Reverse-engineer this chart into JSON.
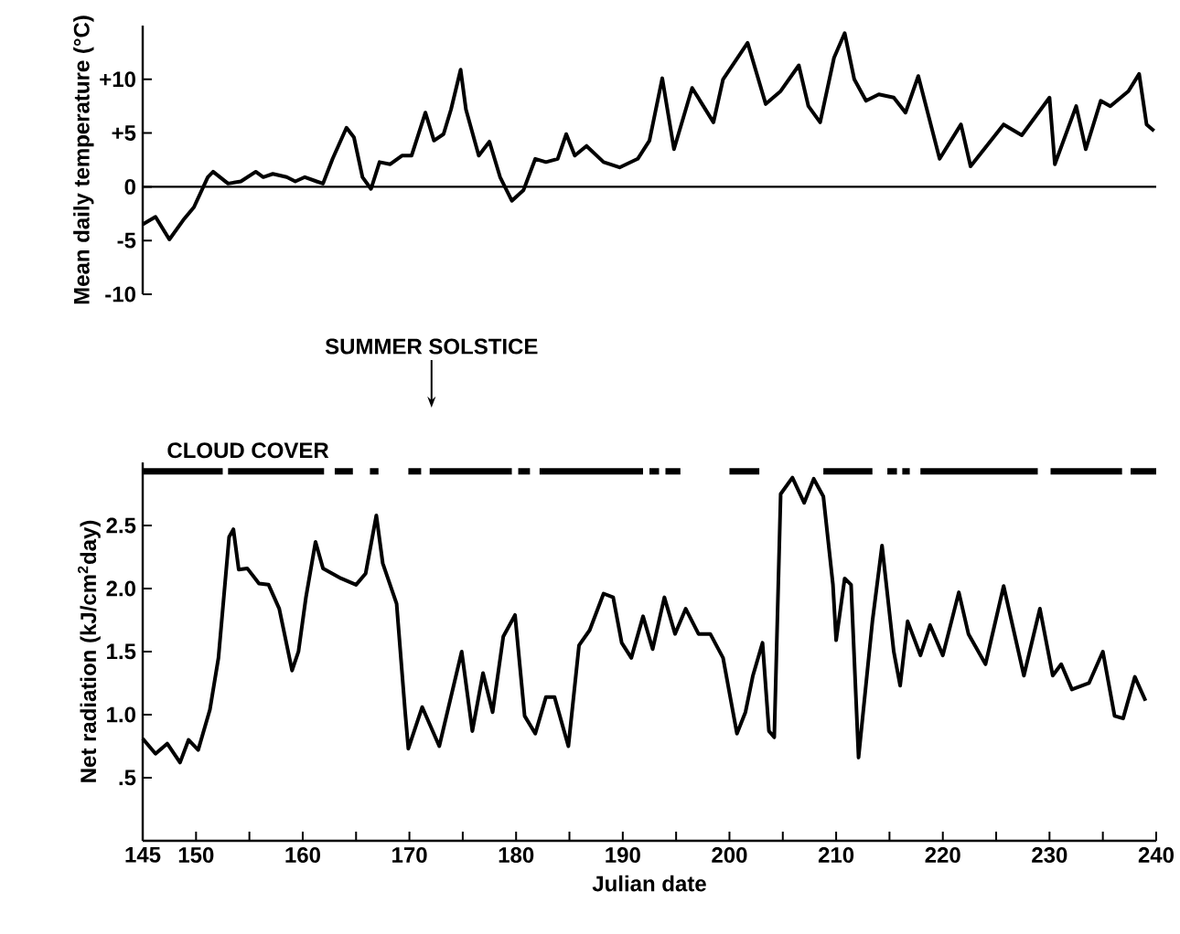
{
  "chart_data": [
    {
      "type": "line",
      "ylabel": "Mean daily temperature (°C)",
      "xlim": [
        145,
        240
      ],
      "ylim": [
        -10,
        15
      ],
      "yticks": [
        {
          "value": 10,
          "label": "+10"
        },
        {
          "value": 5,
          "label": "+5"
        },
        0,
        -5,
        -10
      ],
      "tick_labels": "y",
      "ref_lines": [
        {
          "axis": "y",
          "value": 0,
          "color": "#000000"
        }
      ],
      "series": [
        {
          "color": "#000000",
          "x": [
            145,
            146.2,
            147.5,
            148.8,
            149.8,
            151.1,
            151.6,
            153,
            154.2,
            155.6,
            156.3,
            157.2,
            158.5,
            159.3,
            160.2,
            161.3,
            161.9,
            162.8,
            164.1,
            164.8,
            165.6,
            166.4,
            167.2,
            168.2,
            169.3,
            170.2,
            171.5,
            172.3,
            173.2,
            173.9,
            174.8,
            175.3,
            176.5,
            177.5,
            178.5,
            179.6,
            180.7,
            181.8,
            182.8,
            183.9,
            184.7,
            185.5,
            186.6,
            188.2,
            189.7,
            191.4,
            192.5,
            193.7,
            194.8,
            196.5,
            198.5,
            199.4,
            201.7,
            203.4,
            204.8,
            206.5,
            207.4,
            208.5,
            209.8,
            210.8,
            211.7,
            212.8,
            214,
            215.4,
            216.5,
            217.7,
            219.7,
            221.7,
            222.6,
            225.7,
            227.4,
            230,
            230.5,
            232.5,
            233.4,
            234.8,
            235.7,
            237.4,
            238.4,
            239.1,
            239.8
          ],
          "values": [
            -3.5,
            -2.8,
            -4.9,
            -3.1,
            -1.9,
            0.9,
            1.4,
            0.3,
            0.5,
            1.4,
            0.9,
            1.2,
            0.9,
            0.5,
            0.9,
            0.5,
            0.3,
            2.6,
            5.5,
            4.6,
            0.9,
            -0.2,
            2.3,
            2.1,
            2.9,
            2.9,
            6.9,
            4.3,
            4.9,
            7.2,
            10.9,
            7.2,
            2.9,
            4.2,
            0.9,
            -1.3,
            -0.3,
            2.6,
            2.3,
            2.6,
            4.9,
            2.9,
            3.8,
            2.3,
            1.8,
            2.6,
            4.3,
            10.1,
            3.5,
            9.2,
            6.0,
            10.0,
            13.4,
            7.7,
            8.9,
            11.3,
            7.5,
            6.0,
            12.0,
            14.3,
            10.0,
            8.0,
            8.6,
            8.3,
            6.9,
            10.3,
            2.6,
            5.8,
            1.9,
            5.8,
            4.8,
            8.3,
            2.1,
            7.5,
            3.5,
            8.0,
            7.5,
            8.9,
            10.5,
            5.8,
            5.2
          ]
        }
      ]
    },
    {
      "type": "line",
      "xlabel": "Julian date",
      "ylabel": "Net radiation (kJ/cm$^{2}$day)",
      "xlim": [
        145,
        240
      ],
      "ylim": [
        0,
        3
      ],
      "xticks": [
        145,
        150,
        {
          "value": 155,
          "label": null
        },
        160,
        {
          "value": 165,
          "label": null
        },
        170,
        {
          "value": 175,
          "label": null
        },
        180,
        {
          "value": 185,
          "label": null
        },
        190,
        {
          "value": 195,
          "label": null
        },
        200,
        {
          "value": 205,
          "label": null
        },
        210,
        {
          "value": 215,
          "label": null
        },
        220,
        {
          "value": 225,
          "label": null
        },
        230,
        {
          "value": 235,
          "label": null
        },
        240
      ],
      "yticks": [
        {
          "value": 0.5,
          "label": ".5"
        },
        {
          "value": 1,
          "label": "1.0"
        },
        {
          "value": 1.5,
          "label": "1.5"
        },
        {
          "value": 2,
          "label": "2.0"
        },
        {
          "value": 2.5,
          "label": "2.5"
        }
      ],
      "annotations": [
        "SUMMER SOLSTICE"
      ],
      "series": [
        {
          "name": "CLOUD COVER",
          "color": "#000000",
          "x": [
            145,
            152.5,
            152.7,
            153,
            162,
            162.5,
            163,
            164.7,
            165.5,
            166.3,
            167.1,
            168.5,
            169.9,
            171.1,
            171.5,
            171.9,
            179.6,
            179.9,
            180.2,
            181.3,
            181.7,
            182.2,
            191.9,
            192.2,
            192.5,
            193.4,
            193.7,
            194,
            195.4,
            197.7,
            200,
            202.8,
            205.8,
            208.8,
            213.4,
            214.1,
            214.8,
            215.7,
            216,
            216.2,
            216.9,
            217.4,
            217.9,
            228.9,
            229.5,
            230.1,
            236.8,
            237.2,
            237.6,
            240
          ],
          "values": [
            2.93,
            2.93,
            null,
            2.93,
            2.93,
            null,
            2.93,
            2.93,
            null,
            2.93,
            2.93,
            null,
            2.93,
            2.93,
            null,
            2.93,
            2.93,
            null,
            2.93,
            2.93,
            null,
            2.93,
            2.93,
            null,
            2.93,
            2.93,
            null,
            2.93,
            2.93,
            null,
            2.93,
            2.93,
            null,
            2.93,
            2.93,
            null,
            2.93,
            2.93,
            null,
            2.93,
            2.93,
            null,
            2.93,
            2.93,
            null,
            2.93,
            2.93,
            null,
            2.93,
            2.93
          ]
        },
        {
          "color": "#000000",
          "x": [
            145,
            146.2,
            147.3,
            148.5,
            149.3,
            150.2,
            151.3,
            152.1,
            153.1,
            153.5,
            154,
            154.8,
            155.9,
            156.8,
            157.8,
            159,
            159.6,
            160.3,
            161.2,
            161.9,
            163.6,
            165,
            165.9,
            166.9,
            167.5,
            168.8,
            169.6,
            169.9,
            171.2,
            172.8,
            174.9,
            175.9,
            176.9,
            177.8,
            178.8,
            179.9,
            180.8,
            181.8,
            182.8,
            183.6,
            184.9,
            185.9,
            186.9,
            188.2,
            189.1,
            189.9,
            190.8,
            191.9,
            192.8,
            193.9,
            194.9,
            195.9,
            197.1,
            198.2,
            199.4,
            200.7,
            201.5,
            202.2,
            203.1,
            203.7,
            204.2,
            204.8,
            205.9,
            207,
            207.9,
            208.8,
            209.7,
            210,
            210.8,
            211.4,
            212.1,
            213.4,
            214.3,
            215.4,
            216,
            216.7,
            217.9,
            218.8,
            220,
            221.5,
            222.4,
            224,
            225.7,
            227.6,
            229.1,
            230.3,
            231.1,
            232.1,
            233.7,
            235,
            236.1,
            236.9,
            238,
            239
          ],
          "values": [
            0.81,
            0.69,
            0.77,
            0.62,
            0.8,
            0.72,
            1.04,
            1.45,
            2.41,
            2.47,
            2.15,
            2.16,
            2.04,
            2.03,
            1.84,
            1.35,
            1.5,
            1.93,
            2.37,
            2.16,
            2.08,
            2.03,
            2.12,
            2.58,
            2.2,
            1.88,
            1.02,
            0.73,
            1.06,
            0.75,
            1.5,
            0.87,
            1.33,
            1.02,
            1.62,
            1.79,
            0.99,
            0.85,
            1.14,
            1.14,
            0.75,
            1.55,
            1.67,
            1.96,
            1.93,
            1.57,
            1.45,
            1.78,
            1.52,
            1.93,
            1.64,
            1.84,
            1.64,
            1.64,
            1.45,
            0.85,
            1.02,
            1.31,
            1.57,
            0.87,
            0.82,
            2.75,
            2.88,
            2.68,
            2.87,
            2.73,
            2.03,
            1.59,
            2.08,
            2.03,
            0.66,
            1.74,
            2.34,
            1.5,
            1.23,
            1.74,
            1.47,
            1.71,
            1.47,
            1.97,
            1.64,
            1.4,
            2.02,
            1.31,
            1.84,
            1.31,
            1.4,
            1.2,
            1.25,
            1.5,
            0.99,
            0.97,
            1.3,
            1.11
          ]
        }
      ]
    }
  ]
}
